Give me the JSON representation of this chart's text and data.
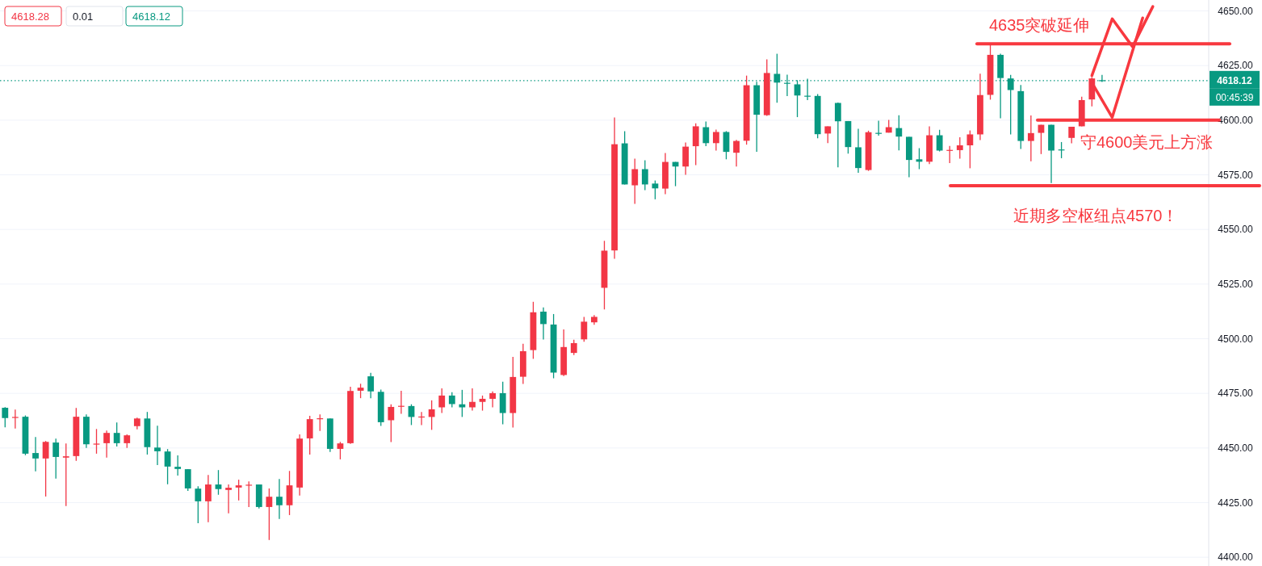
{
  "chart_data": {
    "type": "candlestick",
    "categories": [
      null,
      null,
      null,
      null,
      null,
      null,
      null,
      null,
      null,
      null,
      null,
      null,
      null,
      null,
      null,
      null,
      null,
      null,
      null,
      null,
      null,
      null,
      null,
      null,
      null,
      null,
      null,
      null,
      null,
      null,
      null,
      null,
      null,
      null,
      null,
      null,
      null,
      null,
      null,
      null,
      null,
      null,
      null,
      null,
      null,
      null,
      null,
      null,
      null,
      null,
      null,
      null,
      null,
      null,
      null,
      null,
      null,
      null,
      null,
      null,
      null,
      null,
      null,
      null,
      null,
      null,
      null,
      null,
      null,
      null,
      null,
      null,
      null,
      null,
      null,
      null,
      null,
      null,
      null,
      null,
      null,
      null,
      null,
      null,
      null,
      null,
      null,
      null,
      null,
      null,
      null,
      null,
      null,
      null,
      null,
      null,
      null,
      null,
      null,
      null,
      null,
      null,
      null,
      null,
      null,
      null,
      null,
      null,
      null,
      null,
      null,
      null,
      null,
      null,
      null,
      null,
      null,
      null,
      null
    ],
    "colors": [
      "#089981",
      "#f23645",
      "#089981",
      "#089981",
      "#f23645",
      "#089981",
      "#f23645",
      "#f23645",
      "#089981",
      "#f23645",
      "#f23645",
      "#089981",
      "#f23645",
      "#f23645",
      "#089981",
      "#089981",
      "#089981",
      "#089981",
      "#089981",
      "#089981",
      "#f23645",
      "#089981",
      "#f23645",
      "#f23645",
      "#f23645",
      "#089981",
      "#f23645",
      "#089981",
      "#f23645",
      "#f23645",
      "#f23645",
      "#f23645",
      "#089981",
      "#f23645",
      "#f23645",
      "#f23645",
      "#089981",
      "#089981",
      "#f23645",
      "#f23645",
      "#089981",
      "#f23645",
      "#f23645",
      "#f23645",
      "#089981",
      "#089981",
      "#f23645",
      "#f23645",
      "#f23645",
      "#089981",
      "#f23645",
      "#f23645",
      "#f23645",
      "#089981",
      "#089981",
      "#f23645",
      "#f23645",
      "#f23645",
      "#f23645",
      "#f23645",
      "#f23645",
      "#089981",
      "#f23645",
      "#089981",
      "#089981",
      "#f23645",
      "#089981",
      "#f23645",
      "#f23645",
      "#089981",
      "#f23645",
      "#089981",
      "#f23645",
      "#f23645",
      "#089981",
      "#f23645",
      "#089981",
      "#089981",
      "#089981",
      "#089981",
      "#089981",
      "#f23645",
      "#089981",
      "#089981",
      "#089981",
      "#f23645",
      "#089981",
      "#f23645",
      "#089981",
      "#089981",
      "#089981",
      "#f23645",
      "#089981",
      "#f23645",
      "#f23645",
      "#f23645",
      "#f23645",
      "#f23645",
      "#089981",
      "#089981",
      "#089981",
      "#f23645",
      "#f23645",
      "#089981",
      "#089981",
      "#f23645",
      "#f23645",
      "#f23645",
      "#089981",
      null,
      null,
      null,
      null,
      null,
      null,
      null,
      null,
      null,
      null
    ],
    "ohlc": [
      [
        4468.4,
        4468.7,
        4459.5,
        4463.7
      ],
      [
        4463.8,
        4467.6,
        4458.9,
        4464.2
      ],
      [
        4464.3,
        4464.9,
        4446.7,
        4447.4
      ],
      [
        4447.7,
        4455.0,
        4439.3,
        4445.2
      ],
      [
        4445.2,
        4453.2,
        4427.8,
        4452.8
      ],
      [
        4452.5,
        4454.3,
        4436.0,
        4445.9
      ],
      [
        4445.6,
        4452.1,
        4423.4,
        4446.2
      ],
      [
        4446.3,
        4468.3,
        4444.1,
        4464.3
      ],
      [
        4464.3,
        4465.4,
        4450.0,
        4451.7
      ],
      [
        4451.8,
        4458.7,
        4447.4,
        4452.0
      ],
      [
        4452.2,
        4458.0,
        4445.6,
        4456.9
      ],
      [
        4456.9,
        4461.7,
        4450.7,
        4452.2
      ],
      [
        4452.2,
        4456.2,
        4450.0,
        4455.8
      ],
      [
        4460.0,
        4463.9,
        4458.5,
        4463.5
      ],
      [
        4463.5,
        4466.5,
        4447.0,
        4450.4
      ],
      [
        4450.2,
        4460.2,
        4442.2,
        4448.5
      ],
      [
        4448.4,
        4449.5,
        4433.4,
        4441.5
      ],
      [
        4441.4,
        4446.6,
        4437.4,
        4440.4
      ],
      [
        4440.3,
        4440.3,
        4430.4,
        4431.5
      ],
      [
        4431.4,
        4432.5,
        4415.6,
        4425.6
      ],
      [
        4425.6,
        4437.7,
        4416.0,
        4433.3
      ],
      [
        4433.3,
        4439.9,
        4428.6,
        4431.2
      ],
      [
        4430.8,
        4433.3,
        4420.1,
        4431.8
      ],
      [
        4431.9,
        4435.5,
        4426.0,
        4432.9
      ],
      [
        4433.0,
        4434.7,
        4423.0,
        4433.2
      ],
      [
        4433.3,
        4433.3,
        4422.3,
        4423.0
      ],
      [
        4423.0,
        4431.5,
        4407.9,
        4427.7
      ],
      [
        4427.7,
        4435.8,
        4417.5,
        4423.8
      ],
      [
        4423.8,
        4439.5,
        4419.3,
        4432.9
      ],
      [
        4431.9,
        4456.2,
        4428.2,
        4454.3
      ],
      [
        4454.4,
        4464.7,
        4447.0,
        4463.2
      ],
      [
        4463.4,
        4465.4,
        4457.8,
        4463.6
      ],
      [
        4463.5,
        4463.5,
        4448.2,
        4449.6
      ],
      [
        4449.6,
        4452.8,
        4444.8,
        4452.1
      ],
      [
        4452.2,
        4478.0,
        4451.9,
        4476.1
      ],
      [
        4476.2,
        4479.4,
        4472.8,
        4477.6
      ],
      [
        4482.8,
        4484.4,
        4472.8,
        4475.9
      ],
      [
        4475.7,
        4476.7,
        4460.1,
        4461.8
      ],
      [
        4462.7,
        4470.0,
        4452.7,
        4468.8
      ],
      [
        4469.1,
        4476.2,
        4465.6,
        4469.3
      ],
      [
        4469.2,
        4470.0,
        4460.5,
        4464.2
      ],
      [
        4464.2,
        4466.5,
        4460.5,
        4464.4
      ],
      [
        4464.2,
        4471.8,
        4458.3,
        4467.7
      ],
      [
        4468.6,
        4477.3,
        4466.0,
        4474.0
      ],
      [
        4474.0,
        4475.5,
        4468.6,
        4470.1
      ],
      [
        4470.0,
        4476.6,
        4464.2,
        4468.6
      ],
      [
        4468.6,
        4477.3,
        4467.1,
        4471.1
      ],
      [
        4471.1,
        4474.0,
        4467.1,
        4472.5
      ],
      [
        4472.5,
        4475.9,
        4468.6,
        4475.1
      ],
      [
        4475.1,
        4480.3,
        4460.8,
        4466.0
      ],
      [
        4466.0,
        4491.7,
        4459.4,
        4482.5
      ],
      [
        4482.6,
        4497.7,
        4479.3,
        4494.3
      ],
      [
        4494.8,
        4516.9,
        4490.8,
        4512.1
      ],
      [
        4512.4,
        4514.3,
        4499.6,
        4506.7
      ],
      [
        4506.5,
        4511.3,
        4481.9,
        4484.5
      ],
      [
        4483.4,
        4504.3,
        4482.9,
        4496.2
      ],
      [
        4493.5,
        4499.5,
        4492.5,
        4498.0
      ],
      [
        4499.7,
        4510.0,
        4498.6,
        4507.8
      ],
      [
        4507.5,
        4510.8,
        4506.4,
        4510.0
      ],
      [
        4523.3,
        4544.8,
        4513.4,
        4540.3
      ],
      [
        4540.4,
        4601.2,
        4536.6,
        4589.0
      ],
      [
        4589.4,
        4595.0,
        4570.6,
        4570.6
      ],
      [
        4570.2,
        4582.4,
        4561.7,
        4577.6
      ],
      [
        4577.6,
        4581.7,
        4568.0,
        4570.6
      ],
      [
        4571.0,
        4572.4,
        4563.8,
        4568.8
      ],
      [
        4568.7,
        4585.0,
        4566.1,
        4580.9
      ],
      [
        4580.9,
        4580.9,
        4569.8,
        4578.8
      ],
      [
        4578.8,
        4589.8,
        4575.0,
        4587.9
      ],
      [
        4588.1,
        4598.6,
        4579.4,
        4597.2
      ],
      [
        4596.8,
        4599.4,
        4588.1,
        4589.5
      ],
      [
        4589.5,
        4595.7,
        4586.1,
        4594.6
      ],
      [
        4594.6,
        4595.0,
        4582.1,
        4585.5
      ],
      [
        4585.1,
        4591.0,
        4578.8,
        4590.5
      ],
      [
        4590.6,
        4620.4,
        4588.8,
        4616.0
      ],
      [
        4616.0,
        4617.6,
        4585.5,
        4602.5
      ],
      [
        4602.3,
        4627.8,
        4602.0,
        4621.6
      ],
      [
        4621.2,
        4630.4,
        4608.0,
        4617.2
      ],
      [
        4617.1,
        4620.8,
        4611.0,
        4616.9
      ],
      [
        4616.4,
        4618.3,
        4601.4,
        4611.3
      ],
      [
        4611.2,
        4619.0,
        4609.2,
        4611.0
      ],
      [
        4611.1,
        4612.0,
        4591.7,
        4593.6
      ],
      [
        4593.9,
        4597.2,
        4589.5,
        4597.2
      ],
      [
        4607.9,
        4608.1,
        4578.4,
        4599.5
      ],
      [
        4599.6,
        4599.6,
        4584.7,
        4587.7
      ],
      [
        4587.6,
        4596.1,
        4575.9,
        4578.1
      ],
      [
        4577.2,
        4595.2,
        4576.8,
        4594.5
      ],
      [
        4594.2,
        4599.8,
        4592.9,
        4594.0
      ],
      [
        4594.3,
        4600.1,
        4594.3,
        4596.8
      ],
      [
        4596.4,
        4602.3,
        4586.2,
        4592.5
      ],
      [
        4592.4,
        4592.4,
        4573.9,
        4581.8
      ],
      [
        4582.1,
        4587.2,
        4577.6,
        4581.0
      ],
      [
        4581.0,
        4597.2,
        4579.9,
        4593.1
      ],
      [
        4593.1,
        4595.6,
        4585.7,
        4586.1
      ],
      [
        4586.2,
        4588.2,
        4580.4,
        4586.4
      ],
      [
        4586.3,
        4592.2,
        4582.4,
        4588.5
      ],
      [
        4588.5,
        4595.3,
        4578.0,
        4593.5
      ],
      [
        4593.5,
        4621.3,
        4590.9,
        4611.5
      ],
      [
        4611.6,
        4635.0,
        4609.4,
        4629.9
      ],
      [
        4629.9,
        4630.4,
        4600.9,
        4619.3
      ],
      [
        4619.1,
        4620.7,
        4593.5,
        4613.8
      ],
      [
        4613.3,
        4616.1,
        4586.8,
        4590.5
      ],
      [
        4590.5,
        4602.2,
        4581.2,
        4594.1
      ],
      [
        4594.2,
        4597.9,
        4584.5,
        4597.9
      ],
      [
        4597.9,
        4597.9,
        4571.2,
        4586.1
      ],
      [
        4586.6,
        4590.0,
        4582.6,
        4586.4
      ],
      [
        4591.9,
        4597.0,
        4589.4,
        4597.0
      ],
      [
        4597.2,
        4610.8,
        4597.2,
        4609.2
      ],
      [
        4609.5,
        4619.7,
        4606.3,
        4619.1
      ],
      [
        4618.3,
        4620.7,
        4617.5,
        4618.12
      ],
      null,
      null,
      null,
      null,
      null,
      null,
      null,
      null,
      null,
      null
    ],
    "series": [
      {
        "type": "line",
        "color": "#f8383f",
        "values": [
          null,
          null,
          null,
          null,
          null,
          null,
          null,
          null,
          null,
          null,
          null,
          null,
          null,
          null,
          null,
          null,
          null,
          null,
          null,
          null,
          null,
          null,
          null,
          null,
          null,
          null,
          null,
          null,
          null,
          null,
          null,
          null,
          null,
          null,
          null,
          null,
          null,
          null,
          null,
          null,
          null,
          null,
          null,
          null,
          null,
          null,
          null,
          null,
          null,
          null,
          null,
          null,
          null,
          null,
          null,
          null,
          null,
          null,
          null,
          null,
          null,
          null,
          null,
          null,
          null,
          null,
          null,
          null,
          null,
          null,
          null,
          null,
          null,
          null,
          null,
          null,
          null,
          null,
          null,
          null,
          null,
          null,
          null,
          null,
          null,
          null,
          null,
          null,
          null,
          null,
          null,
          null,
          null,
          null,
          null,
          null,
          null,
          null,
          null,
          null,
          null,
          null,
          null,
          null,
          null,
          null,
          null,
          4620.4,
          null,
          4646.4,
          null,
          4633.6,
          null,
          4652.0,
          null,
          null,
          null,
          null,
          null
        ]
      },
      {
        "type": "line",
        "color": "#f8383f",
        "values": [
          null,
          null,
          null,
          null,
          null,
          null,
          null,
          null,
          null,
          null,
          null,
          null,
          null,
          null,
          null,
          null,
          null,
          null,
          null,
          null,
          null,
          null,
          null,
          null,
          null,
          null,
          null,
          null,
          null,
          null,
          null,
          null,
          null,
          null,
          null,
          null,
          null,
          null,
          null,
          null,
          null,
          null,
          null,
          null,
          null,
          null,
          null,
          null,
          null,
          null,
          null,
          null,
          null,
          null,
          null,
          null,
          null,
          null,
          null,
          null,
          null,
          null,
          null,
          null,
          null,
          null,
          null,
          null,
          null,
          null,
          null,
          null,
          null,
          null,
          null,
          null,
          null,
          null,
          null,
          null,
          null,
          null,
          null,
          null,
          null,
          null,
          null,
          null,
          null,
          null,
          null,
          null,
          null,
          null,
          null,
          null,
          null,
          null,
          null,
          null,
          null,
          null,
          null,
          null,
          null,
          null,
          null,
          4617.2,
          null,
          4601.3,
          null,
          null,
          4646.8,
          null,
          null,
          null,
          null,
          null,
          null
        ]
      }
    ],
    "ylim": [
      4396,
      4655
    ],
    "yticks": [
      {
        "value": 4400,
        "label": "4400.00"
      },
      {
        "value": 4425,
        "label": "4425.00"
      },
      {
        "value": 4450,
        "label": "4450.00"
      },
      {
        "value": 4475,
        "label": "4475.00"
      },
      {
        "value": 4500,
        "label": "4500.00"
      },
      {
        "value": 4525,
        "label": "4525.00"
      },
      {
        "value": 4550,
        "label": "4550.00"
      },
      {
        "value": 4575,
        "label": "4575.00"
      },
      {
        "value": 4600,
        "label": "4600.00"
      },
      {
        "value": 4625,
        "label": "4625.00"
      },
      {
        "value": 4650,
        "label": "4650.00"
      }
    ],
    "ref_lines": [
      {
        "axis": "y",
        "value": 4618.12,
        "label": "4618.12",
        "color": "#089981",
        "line_style": "dotted"
      },
      {
        "axis": "y",
        "value": 4635,
        "label": "4635突破延伸",
        "color": "#f8383f"
      },
      {
        "axis": "y",
        "value": 4600,
        "label": "守4600美元上方涨",
        "color": "#f8383f"
      },
      {
        "axis": "y",
        "value": 4570,
        "label": "近期多空枢纽点4570！",
        "color": "#f8383f"
      }
    ],
    "annotations": [
      "4618.28",
      "0.01",
      "4618.12",
      "00:45:39"
    ],
    "grid": "y",
    "tick_labels": "y"
  }
}
